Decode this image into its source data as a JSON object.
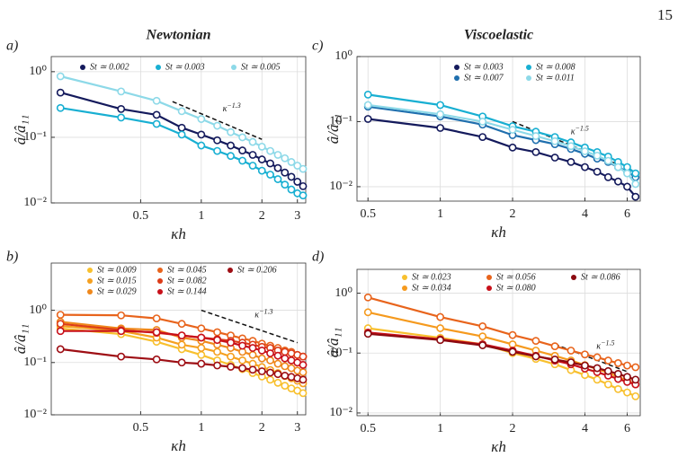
{
  "page_number": "15",
  "chart_data": [
    {
      "type": "line",
      "panel_label": "a)",
      "title": "Newtonian",
      "x_label": "κh",
      "y_label": "â/â₁₁",
      "xscale": "log",
      "yscale": "log",
      "grid": true,
      "legend": "upper center",
      "xlim": [
        0.18,
        3.3
      ],
      "ylim": [
        0.01,
        1.7
      ],
      "xticks": [
        0.5,
        1,
        2,
        3
      ],
      "yticks": [
        {
          "value": 0.01,
          "label": "10⁻²"
        },
        {
          "value": 0.1,
          "label": "10⁻¹"
        },
        {
          "value": 1,
          "label": "10⁰"
        }
      ],
      "x": [
        0.2,
        0.4,
        0.6,
        0.8,
        1.0,
        1.2,
        1.4,
        1.6,
        1.8,
        2.0,
        2.2,
        2.4,
        2.6,
        2.8,
        3.0,
        3.2
      ],
      "series": [
        {
          "name": "St ≃ 0.002",
          "color": "#141a5c",
          "values": [
            0.48,
            0.27,
            0.22,
            0.14,
            0.11,
            0.09,
            0.075,
            0.063,
            0.054,
            0.046,
            0.04,
            0.034,
            0.029,
            0.025,
            0.021,
            0.018
          ]
        },
        {
          "name": "St ≃ 0.003",
          "color": "#18afd2",
          "values": [
            0.28,
            0.2,
            0.16,
            0.11,
            0.075,
            0.062,
            0.052,
            0.044,
            0.037,
            0.031,
            0.027,
            0.023,
            0.019,
            0.016,
            0.014,
            0.013
          ]
        },
        {
          "name": "St ≃ 0.005",
          "color": "#8dd9e8",
          "values": [
            0.85,
            0.5,
            0.36,
            0.25,
            0.19,
            0.15,
            0.12,
            0.1,
            0.085,
            0.072,
            0.062,
            0.054,
            0.048,
            0.042,
            0.037,
            0.033
          ]
        }
      ],
      "reference_line": {
        "x": [
          0.72,
          2
        ],
        "y": [
          0.35,
          0.093
        ],
        "label": "κ",
        "exponent": "−1.3"
      }
    },
    {
      "type": "line",
      "panel_label": "b)",
      "x_label": "κh",
      "y_label": "â/â₁₁",
      "xscale": "log",
      "yscale": "log",
      "grid": true,
      "legend": "upper center",
      "xlim": [
        0.18,
        3.3
      ],
      "ylim": [
        0.01,
        8
      ],
      "xticks": [
        0.5,
        1,
        2,
        3
      ],
      "yticks": [
        {
          "value": 0.01,
          "label": "10⁻²"
        },
        {
          "value": 0.1,
          "label": "10⁻¹"
        },
        {
          "value": 1,
          "label": "10⁰"
        }
      ],
      "x": [
        0.2,
        0.4,
        0.6,
        0.8,
        1.0,
        1.2,
        1.4,
        1.6,
        1.8,
        2.0,
        2.2,
        2.4,
        2.6,
        2.8,
        3.0,
        3.2
      ],
      "series": [
        {
          "name": "St ≃ 0.009",
          "color": "#f8c02e",
          "values": [
            0.45,
            0.35,
            0.25,
            0.18,
            0.14,
            0.11,
            0.09,
            0.075,
            0.063,
            0.054,
            0.047,
            0.041,
            0.036,
            0.032,
            0.029,
            0.026
          ]
        },
        {
          "name": "St ≃ 0.015",
          "color": "#f5a020",
          "values": [
            0.5,
            0.4,
            0.3,
            0.22,
            0.19,
            0.16,
            0.13,
            0.11,
            0.095,
            0.082,
            0.072,
            0.063,
            0.055,
            0.05,
            0.045,
            0.04
          ]
        },
        {
          "name": "St ≃ 0.029",
          "color": "#ef881c",
          "values": [
            0.6,
            0.45,
            0.42,
            0.3,
            0.26,
            0.22,
            0.19,
            0.16,
            0.14,
            0.12,
            0.11,
            0.095,
            0.085,
            0.078,
            0.07,
            0.065
          ]
        },
        {
          "name": "St ≃ 0.045",
          "color": "#e8641c",
          "values": [
            0.82,
            0.8,
            0.7,
            0.55,
            0.45,
            0.38,
            0.33,
            0.29,
            0.26,
            0.23,
            0.21,
            0.19,
            0.17,
            0.16,
            0.14,
            0.13
          ]
        },
        {
          "name": "St ≃ 0.082",
          "color": "#dc3c18",
          "values": [
            0.55,
            0.42,
            0.37,
            0.33,
            0.3,
            0.28,
            0.26,
            0.24,
            0.22,
            0.2,
            0.19,
            0.17,
            0.16,
            0.15,
            0.14,
            0.13
          ]
        },
        {
          "name": "St ≃ 0.144",
          "color": "#c8101a",
          "values": [
            0.4,
            0.4,
            0.38,
            0.33,
            0.3,
            0.27,
            0.24,
            0.21,
            0.19,
            0.17,
            0.15,
            0.135,
            0.12,
            0.11,
            0.1,
            0.09
          ]
        },
        {
          "name": "St ≃ 0.206",
          "color": "#9e0e14",
          "values": [
            0.18,
            0.13,
            0.115,
            0.1,
            0.095,
            0.088,
            0.083,
            0.078,
            0.073,
            0.068,
            0.064,
            0.06,
            0.056,
            0.053,
            0.05,
            0.047
          ]
        }
      ],
      "reference_line": {
        "x": [
          1,
          3
        ],
        "y": [
          1.0,
          0.24
        ],
        "label": "κ",
        "exponent": "−1.3"
      }
    },
    {
      "type": "line",
      "panel_label": "c)",
      "title": "Viscoelastic",
      "x_label": "κh",
      "y_label": "â/â₁₁",
      "xscale": "log",
      "yscale": "log",
      "grid": true,
      "legend": "upper right",
      "xlim": [
        0.45,
        6.8
      ],
      "ylim": [
        0.006,
        1
      ],
      "xticks": [
        0.5,
        1,
        2,
        4,
        6
      ],
      "yticks": [
        {
          "value": 0.01,
          "label": "10⁻²"
        },
        {
          "value": 0.1,
          "label": "10⁻¹"
        },
        {
          "value": 1,
          "label": "10⁰"
        }
      ],
      "x": [
        0.5,
        1.0,
        1.5,
        2.0,
        2.5,
        3.0,
        3.5,
        4.0,
        4.5,
        5.0,
        5.5,
        6.0,
        6.5
      ],
      "series": [
        {
          "name": "St ≃ 0.003",
          "color": "#141a5c",
          "values": [
            0.11,
            0.08,
            0.058,
            0.04,
            0.034,
            0.028,
            0.024,
            0.02,
            0.017,
            0.014,
            0.012,
            0.01,
            0.007
          ]
        },
        {
          "name": "St ≃ 0.007",
          "color": "#1f6fae",
          "values": [
            0.17,
            0.12,
            0.09,
            0.062,
            0.052,
            0.045,
            0.038,
            0.032,
            0.027,
            0.024,
            0.02,
            0.017,
            0.014
          ]
        },
        {
          "name": "St ≃ 0.008",
          "color": "#18afd2",
          "values": [
            0.26,
            0.18,
            0.12,
            0.085,
            0.07,
            0.058,
            0.048,
            0.04,
            0.034,
            0.029,
            0.024,
            0.02,
            0.016
          ]
        },
        {
          "name": "St ≃ 0.011",
          "color": "#8dd9e8",
          "values": [
            0.18,
            0.13,
            0.1,
            0.075,
            0.06,
            0.05,
            0.042,
            0.035,
            0.03,
            0.025,
            0.02,
            0.016,
            0.011
          ]
        }
      ],
      "reference_line": {
        "x": [
          2,
          5.5
        ],
        "y": [
          0.1,
          0.022
        ],
        "label": "κ",
        "exponent": "−1.5"
      }
    },
    {
      "type": "line",
      "panel_label": "d)",
      "x_label": "κh",
      "y_label": "â/â₁₁",
      "xscale": "log",
      "yscale": "log",
      "grid": true,
      "legend": "upper center",
      "xlim": [
        0.45,
        6.8
      ],
      "ylim": [
        0.009,
        2.5
      ],
      "xticks": [
        0.5,
        1,
        2,
        4,
        6
      ],
      "yticks": [
        {
          "value": 0.01,
          "label": "10⁻²"
        },
        {
          "value": 0.1,
          "label": "10⁻¹"
        },
        {
          "value": 1,
          "label": "10⁰"
        }
      ],
      "x": [
        0.5,
        1.0,
        1.5,
        2.0,
        2.5,
        3.0,
        3.5,
        4.0,
        4.5,
        5.0,
        5.5,
        6.0,
        6.5
      ],
      "series": [
        {
          "name": "St ≃ 0.023",
          "color": "#f8c02e",
          "values": [
            0.26,
            0.18,
            0.14,
            0.1,
            0.08,
            0.065,
            0.052,
            0.043,
            0.036,
            0.03,
            0.025,
            0.022,
            0.019
          ]
        },
        {
          "name": "St ≃ 0.034",
          "color": "#f59a1e",
          "values": [
            0.48,
            0.26,
            0.19,
            0.14,
            0.11,
            0.09,
            0.075,
            0.063,
            0.054,
            0.047,
            0.04,
            0.035,
            0.03
          ]
        },
        {
          "name": "St ≃ 0.056",
          "color": "#e8641c",
          "values": [
            0.85,
            0.4,
            0.28,
            0.2,
            0.16,
            0.13,
            0.11,
            0.095,
            0.085,
            0.075,
            0.068,
            0.062,
            0.058
          ]
        },
        {
          "name": "St ≃ 0.080",
          "color": "#c8101a",
          "values": [
            0.22,
            0.17,
            0.14,
            0.11,
            0.09,
            0.075,
            0.065,
            0.055,
            0.048,
            0.042,
            0.037,
            0.033,
            0.03
          ]
        },
        {
          "name": "St ≃ 0.086",
          "color": "#8b0a10",
          "values": [
            0.21,
            0.165,
            0.135,
            0.105,
            0.088,
            0.078,
            0.07,
            0.062,
            0.056,
            0.05,
            0.045,
            0.04,
            0.036
          ]
        }
      ],
      "reference_line": {
        "x": [
          3,
          6
        ],
        "y": [
          0.14,
          0.049
        ],
        "label": "κ",
        "exponent": "−1.5"
      }
    }
  ]
}
